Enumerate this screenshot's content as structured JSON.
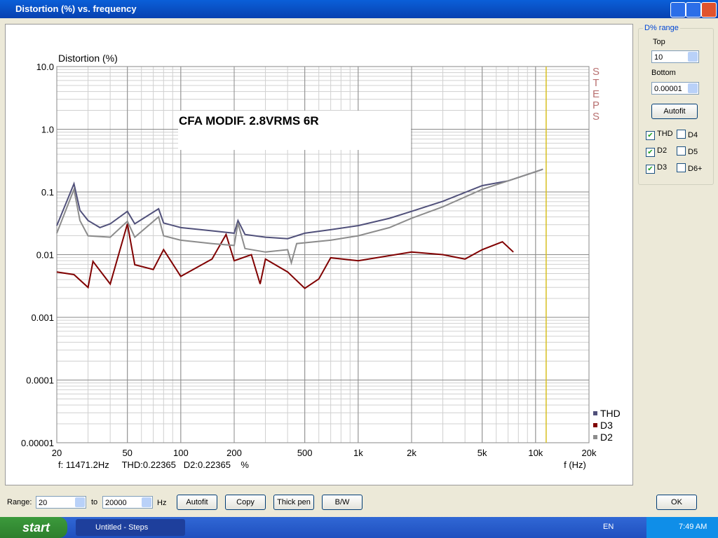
{
  "window": {
    "title": "Distortion (%) vs. frequency"
  },
  "chart_data": {
    "type": "line",
    "title": "Distortion (%)",
    "annotation": "CFA MODIF. 2.8VRMS 6R",
    "watermark": "STEPS",
    "xlabel": "f (Hz)",
    "status": "f: 11471.2Hz     THD:0.22365   D2:0.22365    %",
    "cursor_x": 11471.2,
    "cursor_color": "#d8c020",
    "xlog": true,
    "ylog": true,
    "grid": true,
    "minor_grid": true,
    "legend": "lower right",
    "xlim": [
      20,
      20000
    ],
    "ylim": [
      1e-05,
      10
    ],
    "xticks": [
      20,
      50,
      100,
      200,
      500,
      {
        "value": 1000,
        "label": "1k"
      },
      {
        "value": 2000,
        "label": "2k"
      },
      {
        "value": 5000,
        "label": "5k"
      },
      {
        "value": 10000,
        "label": "10k"
      },
      {
        "value": 20000,
        "label": "20k"
      }
    ],
    "yticks": [
      {
        "value": 10,
        "label": "10.0"
      },
      {
        "value": 1,
        "label": "1.0"
      },
      0.1,
      0.01,
      0.001,
      0.0001,
      1e-05
    ],
    "series": [
      {
        "name": "THD",
        "color": "#50507a",
        "x": [
          20,
          25,
          27,
          30,
          35,
          40,
          50,
          55,
          75,
          80,
          100,
          150,
          200,
          210,
          230,
          300,
          400,
          500,
          700,
          1000,
          1500,
          2000,
          3000,
          5000,
          7000,
          10000,
          11000
        ],
        "values": [
          0.029,
          0.135,
          0.051,
          0.035,
          0.027,
          0.031,
          0.049,
          0.031,
          0.054,
          0.032,
          0.027,
          0.024,
          0.022,
          0.035,
          0.021,
          0.019,
          0.018,
          0.022,
          0.025,
          0.029,
          0.038,
          0.049,
          0.071,
          0.126,
          0.15,
          0.21,
          0.23
        ]
      },
      {
        "name": "D3",
        "color": "#800000",
        "x": [
          20,
          25,
          30,
          32,
          40,
          50,
          55,
          70,
          80,
          100,
          150,
          180,
          200,
          250,
          280,
          300,
          400,
          500,
          600,
          700,
          1000,
          2000,
          3000,
          4000,
          5000,
          6500,
          7500
        ],
        "values": [
          0.0053,
          0.0048,
          0.003,
          0.0078,
          0.0034,
          0.031,
          0.0069,
          0.0058,
          0.012,
          0.0045,
          0.0085,
          0.021,
          0.008,
          0.01,
          0.0034,
          0.0085,
          0.0053,
          0.0029,
          0.0041,
          0.0089,
          0.008,
          0.011,
          0.01,
          0.0085,
          0.012,
          0.016,
          0.011
        ]
      },
      {
        "name": "D2",
        "color": "#8c8c8c",
        "x": [
          20,
          25,
          27,
          30,
          40,
          50,
          55,
          75,
          80,
          100,
          150,
          200,
          210,
          230,
          300,
          400,
          420,
          450,
          700,
          1000,
          1500,
          2000,
          3000,
          5000,
          7000,
          10000,
          11000
        ],
        "values": [
          0.022,
          0.11,
          0.035,
          0.02,
          0.019,
          0.034,
          0.019,
          0.04,
          0.02,
          0.017,
          0.015,
          0.014,
          0.032,
          0.0125,
          0.011,
          0.012,
          0.0074,
          0.015,
          0.017,
          0.02,
          0.027,
          0.038,
          0.058,
          0.11,
          0.15,
          0.21,
          0.23
        ]
      }
    ]
  },
  "panel": {
    "title": "D% range",
    "top_label": "Top",
    "top_value": "10",
    "bottom_label": "Bottom",
    "bottom_value": "0.00001",
    "autofit": "Autofit",
    "checks": [
      {
        "label": "THD",
        "checked": true
      },
      {
        "label": "D4",
        "checked": false
      },
      {
        "label": "D2",
        "checked": true
      },
      {
        "label": "D5",
        "checked": false
      },
      {
        "label": "D3",
        "checked": true
      },
      {
        "label": "D6+",
        "checked": false
      }
    ]
  },
  "bottom": {
    "range_label": "Range:",
    "from": "20",
    "to_label": "to",
    "to": "20000",
    "unit": "Hz",
    "buttons": [
      "Autofit",
      "Copy",
      "Thick pen",
      "B/W"
    ],
    "ok": "OK"
  },
  "taskbar": {
    "start": "start",
    "task": "Untitled - Steps",
    "lang": "EN",
    "time": "7:49 AM"
  }
}
